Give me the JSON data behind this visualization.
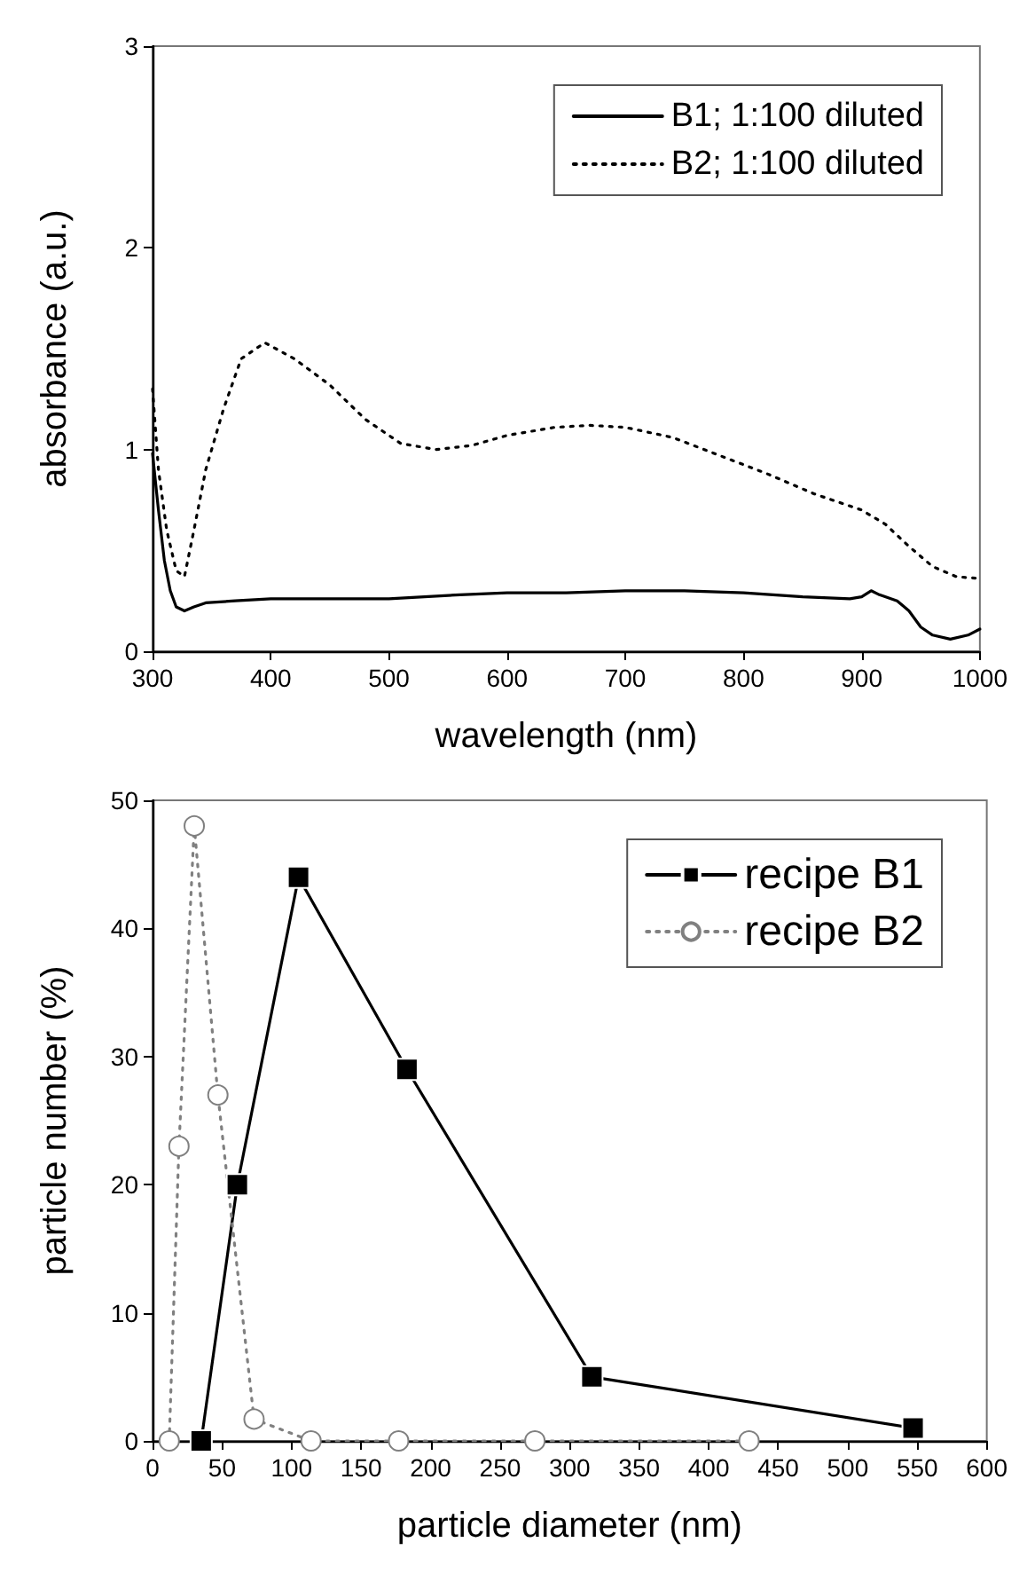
{
  "chart_data": [
    {
      "type": "line",
      "xlabel": "wavelength (nm)",
      "ylabel": "absorbance (a.u.)",
      "xlim": [
        300,
        1000
      ],
      "ylim": [
        0,
        3
      ],
      "xticks": [
        300,
        400,
        500,
        600,
        700,
        800,
        900,
        1000
      ],
      "yticks": [
        0,
        1,
        2,
        3
      ],
      "legend": "top right",
      "grid": false,
      "marker": "none",
      "series": [
        {
          "name": "B1; 1:100 diluted",
          "color": "#000000",
          "line_style": "solid",
          "x": [
            300,
            305,
            310,
            315,
            320,
            327,
            335,
            345,
            370,
            400,
            450,
            500,
            530,
            560,
            600,
            650,
            700,
            750,
            800,
            850,
            890,
            900,
            908,
            915,
            930,
            940,
            950,
            960,
            975,
            990,
            1000
          ],
          "values": [
            0.98,
            0.7,
            0.45,
            0.3,
            0.22,
            0.2,
            0.22,
            0.24,
            0.25,
            0.26,
            0.26,
            0.26,
            0.27,
            0.28,
            0.29,
            0.29,
            0.3,
            0.3,
            0.29,
            0.27,
            0.26,
            0.27,
            0.3,
            0.28,
            0.25,
            0.2,
            0.12,
            0.08,
            0.06,
            0.08,
            0.11
          ]
        },
        {
          "name": "B2; 1:100 diluted",
          "color": "#000000",
          "line_style": "dotted",
          "x": [
            300,
            305,
            312,
            320,
            327,
            335,
            345,
            360,
            375,
            395,
            420,
            450,
            480,
            510,
            540,
            570,
            600,
            640,
            670,
            700,
            740,
            780,
            820,
            860,
            900,
            920,
            940,
            960,
            980,
            1000
          ],
          "values": [
            1.3,
            0.9,
            0.6,
            0.4,
            0.37,
            0.6,
            0.9,
            1.2,
            1.45,
            1.53,
            1.45,
            1.32,
            1.15,
            1.03,
            1.0,
            1.02,
            1.07,
            1.11,
            1.12,
            1.11,
            1.06,
            0.97,
            0.88,
            0.78,
            0.7,
            0.63,
            0.52,
            0.42,
            0.37,
            0.36
          ]
        }
      ]
    },
    {
      "type": "line",
      "xlabel": "particle diameter (nm)",
      "ylabel": "particle number (%)",
      "xlim": [
        0,
        600
      ],
      "ylim": [
        0,
        50
      ],
      "xticks": [
        0,
        50,
        100,
        150,
        200,
        250,
        300,
        350,
        400,
        450,
        500,
        550,
        600
      ],
      "yticks": [
        0,
        10,
        20,
        30,
        40,
        50
      ],
      "legend": "top right",
      "grid": false,
      "series": [
        {
          "name": "recipe B1",
          "color": "#000000",
          "line_style": "solid",
          "marker": "square",
          "x": [
            35,
            61,
            105,
            183,
            316,
            547
          ],
          "values": [
            0,
            20,
            44,
            29,
            5,
            1
          ]
        },
        {
          "name": "recipe B2",
          "color": "#808080",
          "line_style": "dotted",
          "marker": "circle",
          "x": [
            12,
            19,
            30,
            47,
            73,
            114,
            177,
            275,
            429
          ],
          "values": [
            0,
            23,
            48,
            27,
            1.7,
            0,
            0,
            0,
            0
          ]
        }
      ]
    }
  ]
}
